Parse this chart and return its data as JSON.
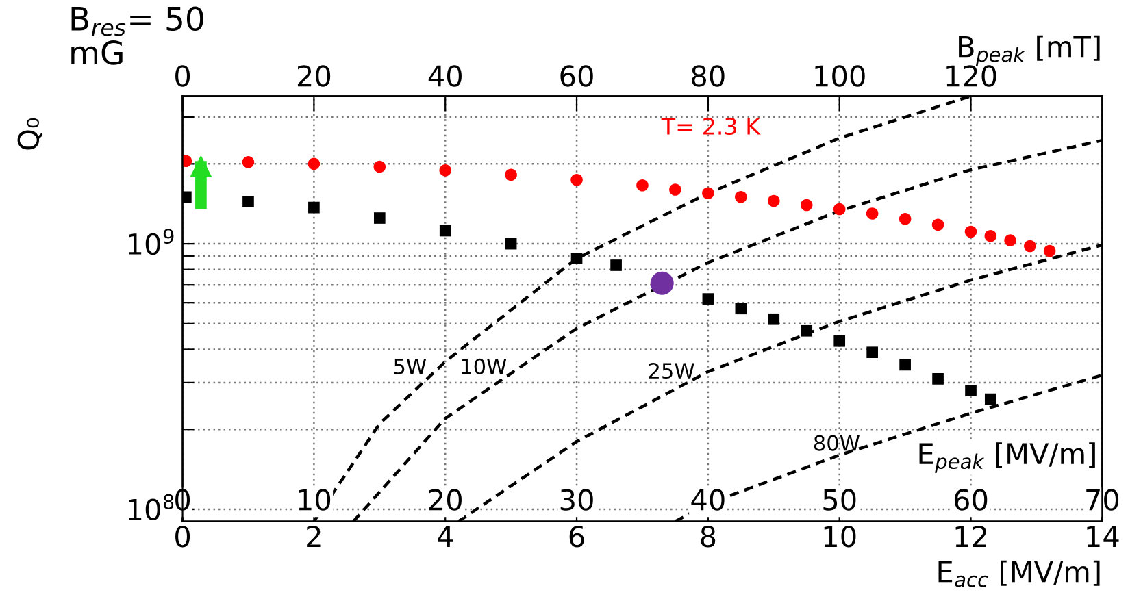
{
  "chart_data": {
    "type": "scatter",
    "xlabel": "E$_{acc}$ [MV/m]",
    "x2label": "B$_{peak}$ [mT]",
    "ylabel": "Q₀",
    "xlim": [
      0,
      14
    ],
    "xticks": [
      0,
      2,
      4,
      6,
      8,
      10,
      12,
      14
    ],
    "x2lim": [
      0,
      140
    ],
    "x2ticks": [
      0,
      20,
      40,
      60,
      80,
      100,
      120
    ],
    "log": "y",
    "ylim": [
      90000000.0,
      3600000000.0
    ],
    "yticks": [
      {
        "value": 100000000.0,
        "label": "10$^{8}$"
      },
      {
        "value": 200000000.0,
        "label": null
      },
      {
        "value": 300000000.0,
        "label": null
      },
      {
        "value": 400000000.0,
        "label": null
      },
      {
        "value": 500000000.0,
        "label": null
      },
      {
        "value": 600000000.0,
        "label": null
      },
      {
        "value": 700000000.0,
        "label": null
      },
      {
        "value": 800000000.0,
        "label": null
      },
      {
        "value": 900000000.0,
        "label": null
      },
      {
        "value": 1000000000.0,
        "label": "10$^{9}$"
      },
      {
        "value": 2000000000.0,
        "label": null
      },
      {
        "value": 3000000000.0,
        "label": null
      }
    ],
    "grid": true,
    "series": [
      {
        "name": "5W",
        "type": "line",
        "line_style": "dashed",
        "marker": "none",
        "color": "#000000",
        "x": [
          2.0,
          3.0,
          4.0,
          6.0,
          8.0,
          10.0,
          12.0
        ],
        "values": [
          90000000.0,
          210000000.0,
          360000000.0,
          880000000.0,
          1550000000.0,
          2500000000.0,
          3600000000.0
        ]
      },
      {
        "name": "10W",
        "type": "line",
        "line_style": "dashed",
        "marker": "none",
        "color": "#000000",
        "x": [
          2.6,
          4,
          6,
          8,
          10,
          12,
          14
        ],
        "values": [
          90000000.0,
          220000000.0,
          480000000.0,
          850000000.0,
          1330000000.0,
          1900000000.0,
          2450000000.0
        ]
      },
      {
        "name": "25W",
        "type": "line",
        "line_style": "dashed",
        "marker": "none",
        "color": "#000000",
        "x": [
          4.2,
          6,
          8,
          10,
          12,
          14
        ],
        "values": [
          90000000.0,
          180000000.0,
          330000000.0,
          510000000.0,
          730000000.0,
          990000000.0
        ]
      },
      {
        "name": "80W",
        "type": "line",
        "line_style": "dashed",
        "marker": "none",
        "color": "#000000",
        "x": [
          7.5,
          8,
          10,
          12,
          14
        ],
        "values": [
          90000000.0,
          105000000.0,
          160000000.0,
          230000000.0,
          320000000.0
        ]
      },
      {
        "name": "T= 2.3 K",
        "marker": "circle",
        "color": "#ff0000",
        "x": [
          0.05,
          1,
          2,
          3,
          4,
          5,
          6,
          7,
          7.5,
          8,
          8.5,
          9,
          9.5,
          10,
          10.5,
          11,
          11.5,
          12,
          12.3,
          12.6,
          12.9,
          13.2
        ],
        "values": [
          2050000000.0,
          2030000000.0,
          2000000000.0,
          1950000000.0,
          1890000000.0,
          1820000000.0,
          1740000000.0,
          1660000000.0,
          1600000000.0,
          1550000000.0,
          1500000000.0,
          1450000000.0,
          1400000000.0,
          1350000000.0,
          1300000000.0,
          1240000000.0,
          1180000000.0,
          1110000000.0,
          1070000000.0,
          1030000000.0,
          980000000.0,
          940000000.0
        ]
      },
      {
        "marker": "square",
        "color": "#000000",
        "x": [
          0.05,
          1,
          2,
          3,
          4,
          5,
          6,
          6.6,
          7.44,
          8,
          8.5,
          9,
          9.5,
          10,
          10.5,
          11,
          11.5,
          12,
          12.3
        ],
        "values": [
          1500000000.0,
          1440000000.0,
          1370000000.0,
          1250000000.0,
          1120000000.0,
          1000000000.0,
          880000000.0,
          830000000.0,
          null,
          620000000.0,
          570000000.0,
          520000000.0,
          470000000.0,
          430000000.0,
          390000000.0,
          350000000.0,
          310000000.0,
          280000000.0,
          260000000.0
        ]
      },
      {
        "marker": "circle",
        "color": "#7030a0",
        "x": [
          7.3
        ],
        "values": [
          710000000.0
        ]
      },
      {
        "type": "line",
        "line_style": "solid",
        "marker": "triangle",
        "color": "#22dd22",
        "x": [
          0.28,
          0.28
        ],
        "values": [
          1420000000.0,
          1950000000.0
        ]
      }
    ],
    "annotations": [
      "B$_{res}$= 50\nmG",
      "E$_{peak}$ [MV/m]",
      "0",
      "10",
      "20",
      "30",
      "40",
      "50",
      "60",
      "70"
    ]
  }
}
